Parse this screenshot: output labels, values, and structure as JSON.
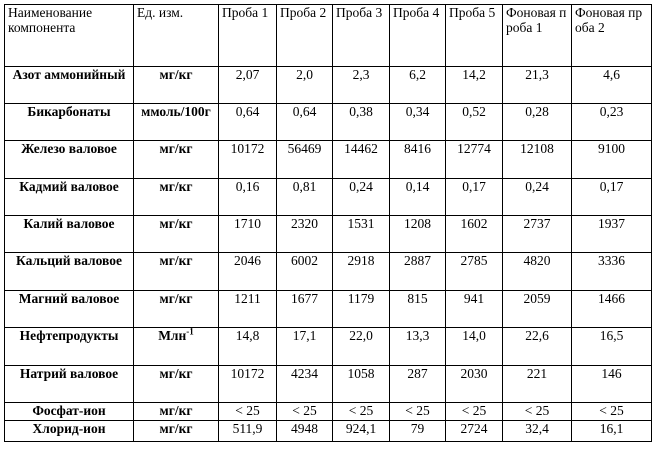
{
  "table": {
    "header": [
      "Наименование компонента",
      "Ед. изм.",
      "Проба 1",
      "Проба 2",
      "Проба 3",
      "Проба 4",
      "Проба 5",
      "Фоновая проба 1",
      "Фоновая проба 2"
    ],
    "rows": [
      [
        "Азот аммонийный",
        "мг/кг",
        "2,07",
        "2,0",
        "2,3",
        "6,2",
        "14,2",
        "21,3",
        "4,6"
      ],
      [
        "Бикарбонаты",
        "ммоль/100г",
        "0,64",
        "0,64",
        "0,38",
        "0,34",
        "0,52",
        "0,28",
        "0,23"
      ],
      [
        "Железо валовое",
        "мг/кг",
        "10172",
        "56469",
        "14462",
        "8416",
        "12774",
        "12108",
        "9100"
      ],
      [
        "Кадмий валовое",
        "мг/кг",
        "0,16",
        "0,81",
        "0,24",
        "0,14",
        "0,17",
        "0,24",
        "0,17"
      ],
      [
        "Калий валовое",
        "мг/кг",
        "1710",
        "2320",
        "1531",
        "1208",
        "1602",
        "2737",
        "1937"
      ],
      [
        "Кальций валовое",
        "мг/кг",
        "2046",
        "6002",
        "2918",
        "2887",
        "2785",
        "4820",
        "3336"
      ],
      [
        "Магний валовое",
        "мг/кг",
        "1211",
        "1677",
        "1179",
        "815",
        "941",
        "2059",
        "1466"
      ],
      [
        "Нефтепродукты",
        {
          "text": "Млн",
          "sup": "-1"
        },
        "14,8",
        "17,1",
        "22,0",
        "13,3",
        "14,0",
        "22,6",
        "16,5"
      ],
      [
        "Натрий валовое",
        "мг/кг",
        "10172",
        "4234",
        "1058",
        "287",
        "2030",
        "221",
        "146"
      ],
      [
        "Фосфат-ион",
        "мг/кг",
        "< 25",
        "< 25",
        "< 25",
        "< 25",
        "< 25",
        "< 25",
        "< 25"
      ],
      [
        "Хлорид-ион",
        "мг/кг",
        "511,9",
        "4948",
        "924,1",
        "79",
        "2724",
        "32,4",
        "16,1"
      ]
    ]
  }
}
